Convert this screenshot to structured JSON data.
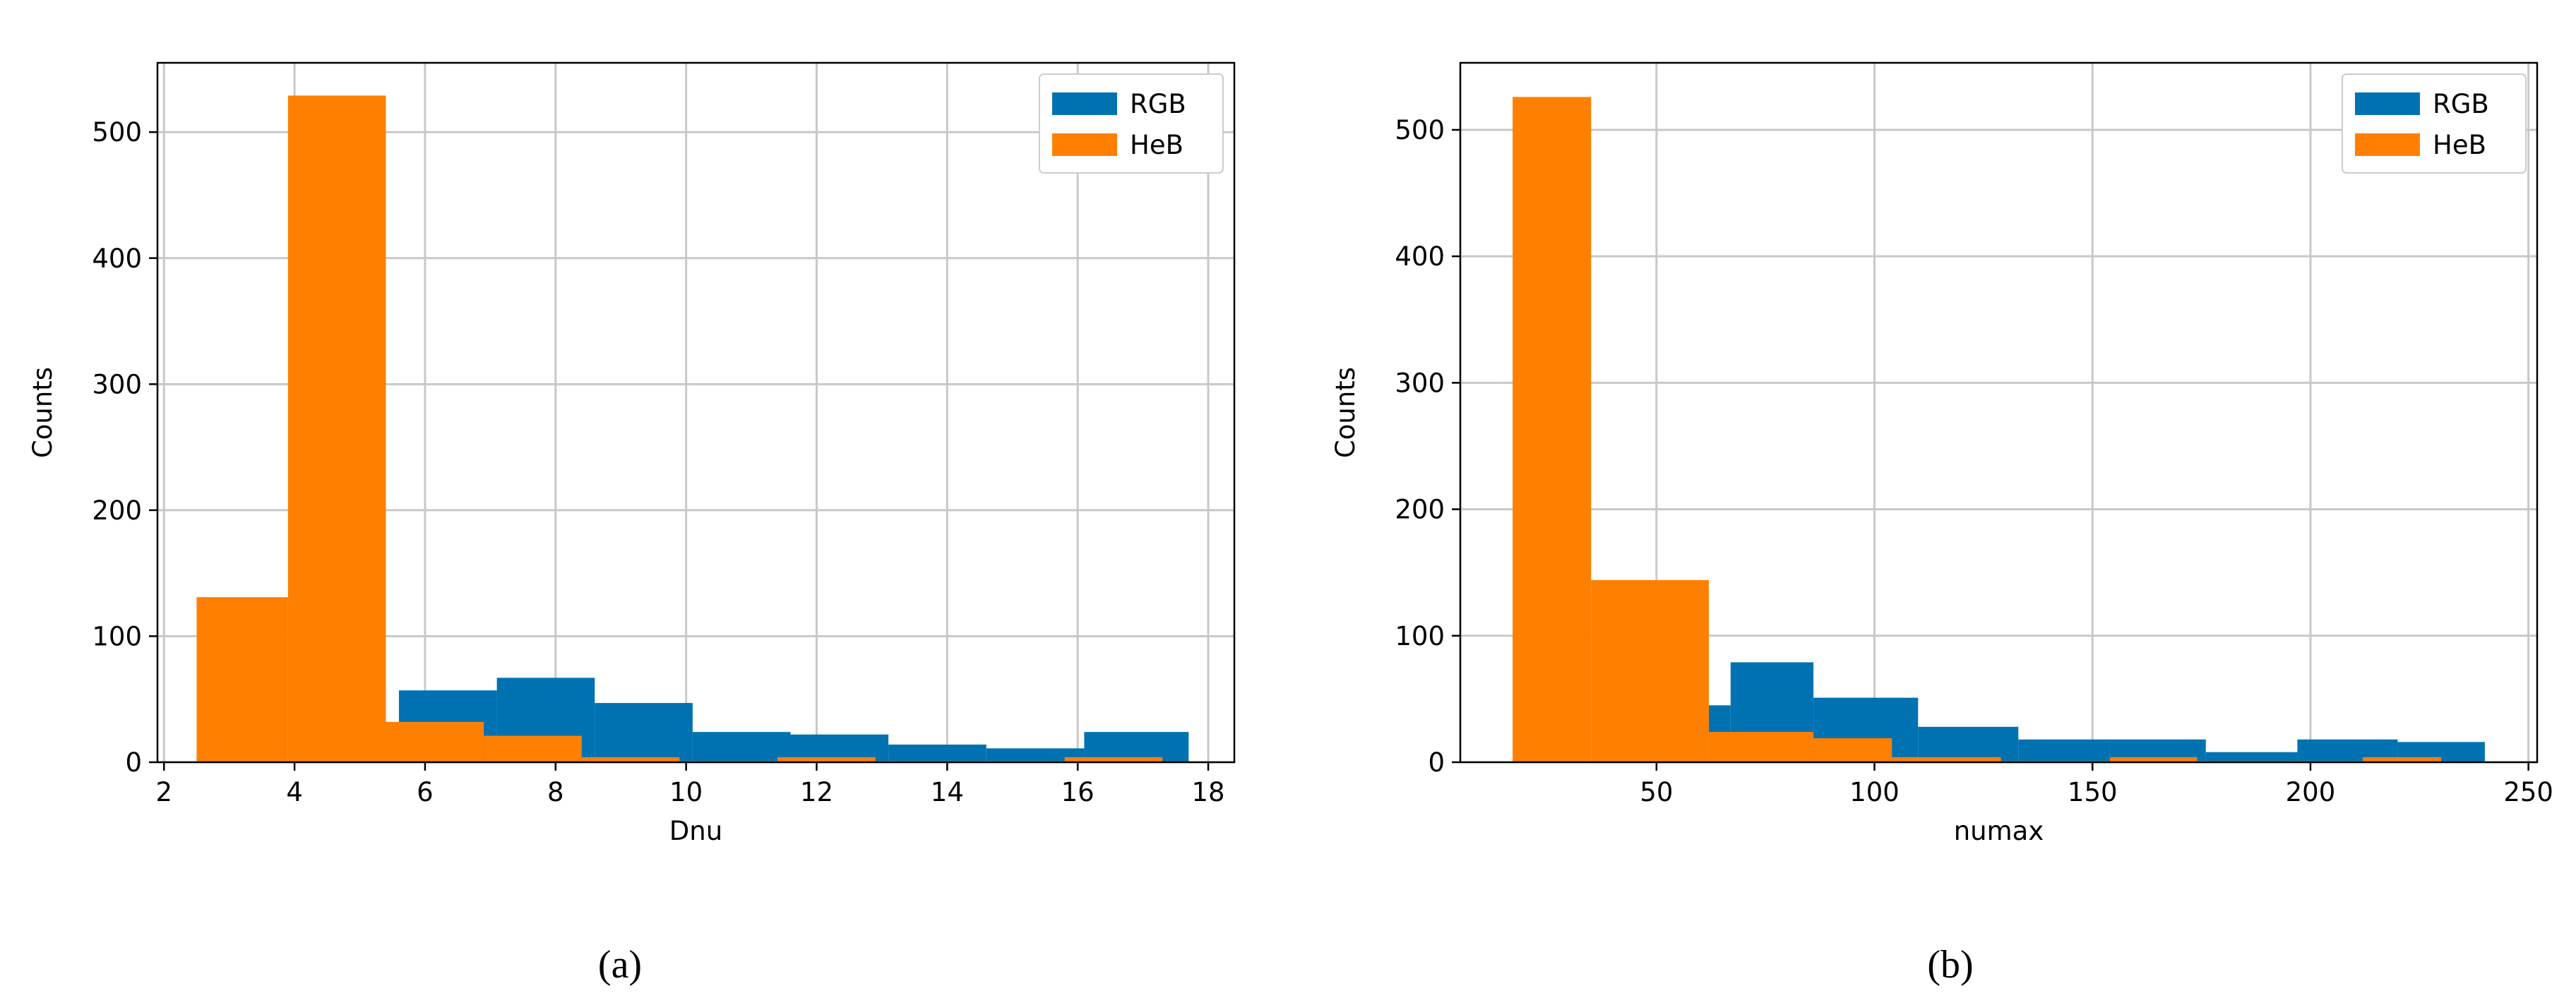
{
  "colors": {
    "RGB": "#0072B2",
    "HeB": "#FF8000",
    "grid": "#c8c8c8",
    "axis": "#000000"
  },
  "chart_data": [
    {
      "type": "histogram",
      "caption": "(a)",
      "xlabel": "Dnu",
      "ylabel": "Counts",
      "xlim": [
        1.9,
        18.4
      ],
      "ylim": [
        0,
        555
      ],
      "xticks": [
        2,
        4,
        6,
        8,
        10,
        12,
        14,
        16,
        18
      ],
      "yticks": [
        0,
        100,
        200,
        300,
        400,
        500
      ],
      "grid": true,
      "legend": {
        "position": "top-right",
        "entries": [
          "RGB",
          "HeB"
        ]
      },
      "series": [
        {
          "name": "RGB",
          "bins": [
            [
              5.6,
              7.1,
              57
            ],
            [
              7.1,
              8.6,
              67
            ],
            [
              8.6,
              10.1,
              47
            ],
            [
              10.1,
              11.6,
              24
            ],
            [
              11.6,
              13.1,
              22
            ],
            [
              13.1,
              14.6,
              14
            ],
            [
              14.6,
              16.1,
              11
            ],
            [
              16.1,
              17.7,
              24
            ]
          ]
        },
        {
          "name": "HeB",
          "bins": [
            [
              2.5,
              3.9,
              131
            ],
            [
              3.9,
              5.4,
              529
            ],
            [
              5.4,
              6.9,
              32
            ],
            [
              6.9,
              8.4,
              21
            ],
            [
              8.4,
              9.9,
              4
            ],
            [
              9.9,
              11.4,
              1
            ],
            [
              11.4,
              12.9,
              4
            ],
            [
              12.9,
              14.4,
              1
            ],
            [
              14.4,
              15.8,
              1
            ],
            [
              15.8,
              17.3,
              4
            ]
          ]
        }
      ]
    },
    {
      "type": "histogram",
      "caption": "(b)",
      "xlabel": "numax",
      "ylabel": "Counts",
      "xlim": [
        5,
        252
      ],
      "ylim": [
        0,
        553
      ],
      "xticks": [
        50,
        100,
        150,
        200,
        250
      ],
      "yticks": [
        0,
        100,
        200,
        300,
        400,
        500
      ],
      "grid": true,
      "legend": {
        "position": "top-right",
        "entries": [
          "RGB",
          "HeB"
        ]
      },
      "series": [
        {
          "name": "RGB",
          "bins": [
            [
              62,
              67,
              45
            ],
            [
              67,
              86,
              79
            ],
            [
              86,
              110,
              51
            ],
            [
              110,
              133,
              28
            ],
            [
              133,
              154,
              18
            ],
            [
              154,
              176,
              18
            ],
            [
              176,
              197,
              8
            ],
            [
              197,
              220,
              18
            ],
            [
              220,
              240,
              16
            ]
          ]
        },
        {
          "name": "HeB",
          "bins": [
            [
              17,
              35,
              526
            ],
            [
              35,
              62,
              144
            ],
            [
              62,
              86,
              24
            ],
            [
              86,
              104,
              19
            ],
            [
              104,
              129,
              4
            ],
            [
              129,
              154,
              1
            ],
            [
              154,
              174,
              4
            ],
            [
              174,
              197,
              1
            ],
            [
              197,
              212,
              1
            ],
            [
              212,
              230,
              4
            ]
          ]
        }
      ]
    }
  ]
}
